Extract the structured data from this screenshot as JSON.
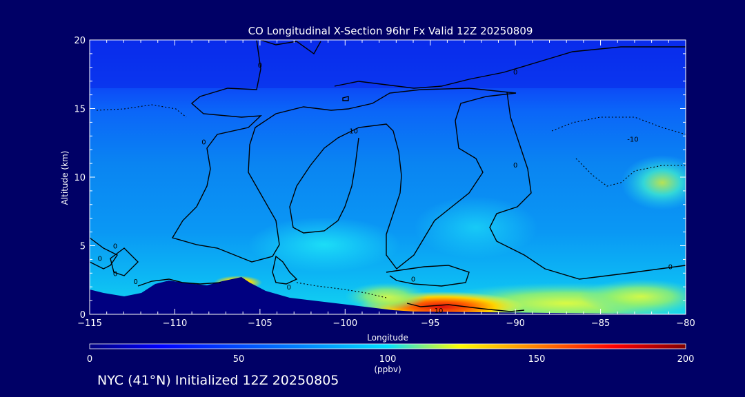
{
  "chart_data": {
    "type": "heatmap",
    "title": "CO Longitudinal X-Section 96hr  Fx Valid 12Z 20250809",
    "xlabel": "Longitude",
    "ylabel": "Altitude (km)",
    "xlim": [
      -115,
      -80
    ],
    "ylim": [
      0,
      20
    ],
    "x_ticks": [
      -115,
      -110,
      -105,
      -100,
      -95,
      -90,
      -85,
      -80
    ],
    "x_tick_labels": [
      "−115",
      "−110",
      "−105",
      "−100",
      "−95",
      "−90",
      "−85",
      "−80"
    ],
    "y_ticks": [
      0,
      5,
      10,
      15,
      20
    ],
    "y_tick_labels": [
      "0",
      "5",
      "10",
      "15",
      "20"
    ],
    "colorbar": {
      "label": "(ppbv)",
      "min": 0,
      "max": 200,
      "ticks": [
        0,
        50,
        100,
        150,
        200
      ],
      "tick_labels": [
        "0",
        "50",
        "100",
        "150",
        "200"
      ],
      "colors": [
        "#000080",
        "#0000ff",
        "#0080ff",
        "#00e0ff",
        "#ffff00",
        "#ff8000",
        "#ff0000",
        "#800000"
      ]
    },
    "contour_labels": [
      {
        "text": "0",
        "lon": -112.3,
        "alt": 2.4
      },
      {
        "text": "0",
        "lon": -114.4,
        "alt": 4.1
      },
      {
        "text": "0",
        "lon": -113.5,
        "alt": 3.0
      },
      {
        "text": "0",
        "lon": -113.5,
        "alt": 5.0
      },
      {
        "text": "0",
        "lon": -108.3,
        "alt": 12.6
      },
      {
        "text": "0",
        "lon": -105.0,
        "alt": 18.2
      },
      {
        "text": "0",
        "lon": -103.3,
        "alt": 2.0
      },
      {
        "text": "0",
        "lon": -96.0,
        "alt": 2.6
      },
      {
        "text": "0",
        "lon": -90.0,
        "alt": 17.7
      },
      {
        "text": "0",
        "lon": -90.0,
        "alt": 10.9
      },
      {
        "text": "0",
        "lon": -80.9,
        "alt": 3.5
      },
      {
        "text": "10",
        "lon": -99.5,
        "alt": 13.4
      },
      {
        "text": "10",
        "lon": -94.5,
        "alt": 0.3
      },
      {
        "text": "-10",
        "lon": -83.1,
        "alt": 12.8
      }
    ]
  },
  "footer": {
    "initialized": "NYC (41°N) Initialized 12Z 20250805"
  },
  "colors": {
    "background": "#000066",
    "terrain": "#000080",
    "text": "#ffffff"
  }
}
